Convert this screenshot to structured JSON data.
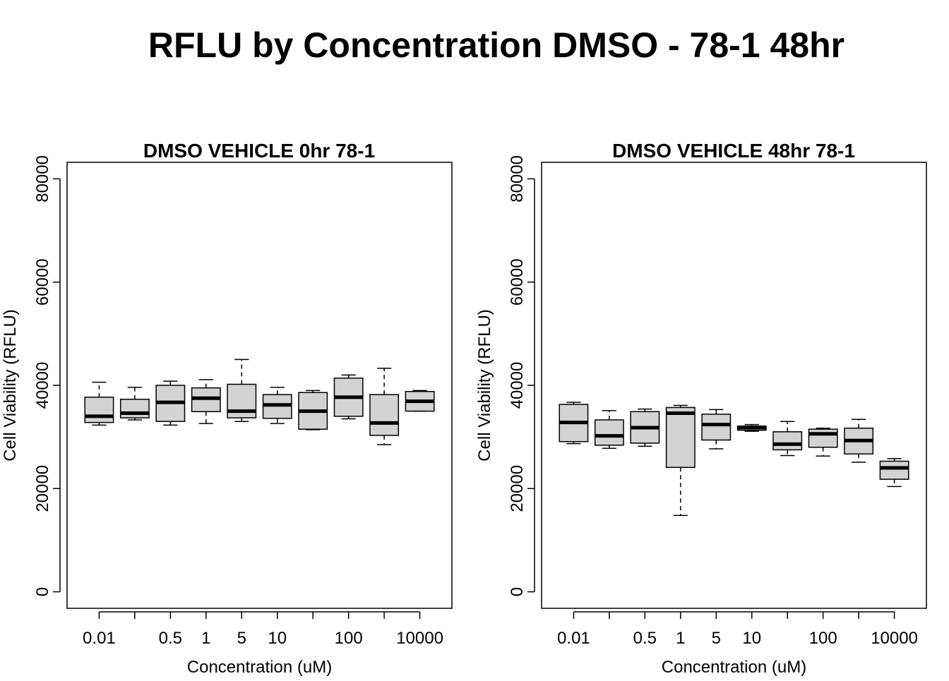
{
  "title": "RFLU by Concentration DMSO - 78-1 48hr",
  "chart_data": [
    {
      "type": "boxplot",
      "title": "DMSO VEHICLE 0hr 78-1",
      "xlabel": "Concentration (uM)",
      "ylabel": "Cell Viability (RFLU)",
      "ylim": [
        0,
        80000
      ],
      "yticks": [
        "0",
        "20000",
        "40000",
        "60000",
        "80000"
      ],
      "categories": [
        "0.01",
        "",
        "0.5",
        "1",
        "5",
        "10",
        "",
        "100",
        "",
        "10000"
      ],
      "boxes": [
        {
          "min": 32300,
          "q1": 32800,
          "median": 34000,
          "q3": 37700,
          "max": 40600
        },
        {
          "min": 33300,
          "q1": 33700,
          "median": 34600,
          "q3": 37300,
          "max": 39600
        },
        {
          "min": 32300,
          "q1": 33000,
          "median": 36700,
          "q3": 40000,
          "max": 40800
        },
        {
          "min": 32600,
          "q1": 34900,
          "median": 37500,
          "q3": 39500,
          "max": 41100
        },
        {
          "min": 33000,
          "q1": 33700,
          "median": 35000,
          "q3": 40200,
          "max": 45000
        },
        {
          "min": 32600,
          "q1": 33600,
          "median": 36200,
          "q3": 38200,
          "max": 39600
        },
        {
          "min": 31400,
          "q1": 31500,
          "median": 35000,
          "q3": 38600,
          "max": 39000
        },
        {
          "min": 33500,
          "q1": 34000,
          "median": 37700,
          "q3": 41400,
          "max": 42000
        },
        {
          "min": 28500,
          "q1": 30300,
          "median": 32700,
          "q3": 38200,
          "max": 43300
        },
        {
          "min": 35000,
          "q1": 35000,
          "median": 36900,
          "q3": 38800,
          "max": 39000
        }
      ]
    },
    {
      "type": "boxplot",
      "title": "DMSO VEHICLE 48hr 78-1",
      "xlabel": "Concentration (uM)",
      "ylabel": "Cell Viability (RFLU)",
      "ylim": [
        0,
        80000
      ],
      "yticks": [
        "0",
        "20000",
        "40000",
        "60000",
        "80000"
      ],
      "categories": [
        "0.01",
        "",
        "0.5",
        "1",
        "5",
        "10",
        "",
        "100",
        "",
        "10000"
      ],
      "boxes": [
        {
          "min": 28700,
          "q1": 29100,
          "median": 32800,
          "q3": 36300,
          "max": 36700
        },
        {
          "min": 27800,
          "q1": 28400,
          "median": 30200,
          "q3": 33300,
          "max": 35100
        },
        {
          "min": 28200,
          "q1": 28800,
          "median": 31800,
          "q3": 34900,
          "max": 35400
        },
        {
          "min": 14800,
          "q1": 24100,
          "median": 34600,
          "q3": 35700,
          "max": 36100
        },
        {
          "min": 27700,
          "q1": 29400,
          "median": 32400,
          "q3": 34400,
          "max": 35300
        },
        {
          "min": 31100,
          "q1": 31300,
          "median": 31800,
          "q3": 32100,
          "max": 32400
        },
        {
          "min": 26400,
          "q1": 27500,
          "median": 28600,
          "q3": 31000,
          "max": 33000
        },
        {
          "min": 26300,
          "q1": 28000,
          "median": 30600,
          "q3": 31500,
          "max": 31700
        },
        {
          "min": 25100,
          "q1": 26700,
          "median": 29300,
          "q3": 31700,
          "max": 33400
        },
        {
          "min": 20400,
          "q1": 21800,
          "median": 24000,
          "q3": 25300,
          "max": 25800
        }
      ]
    }
  ]
}
